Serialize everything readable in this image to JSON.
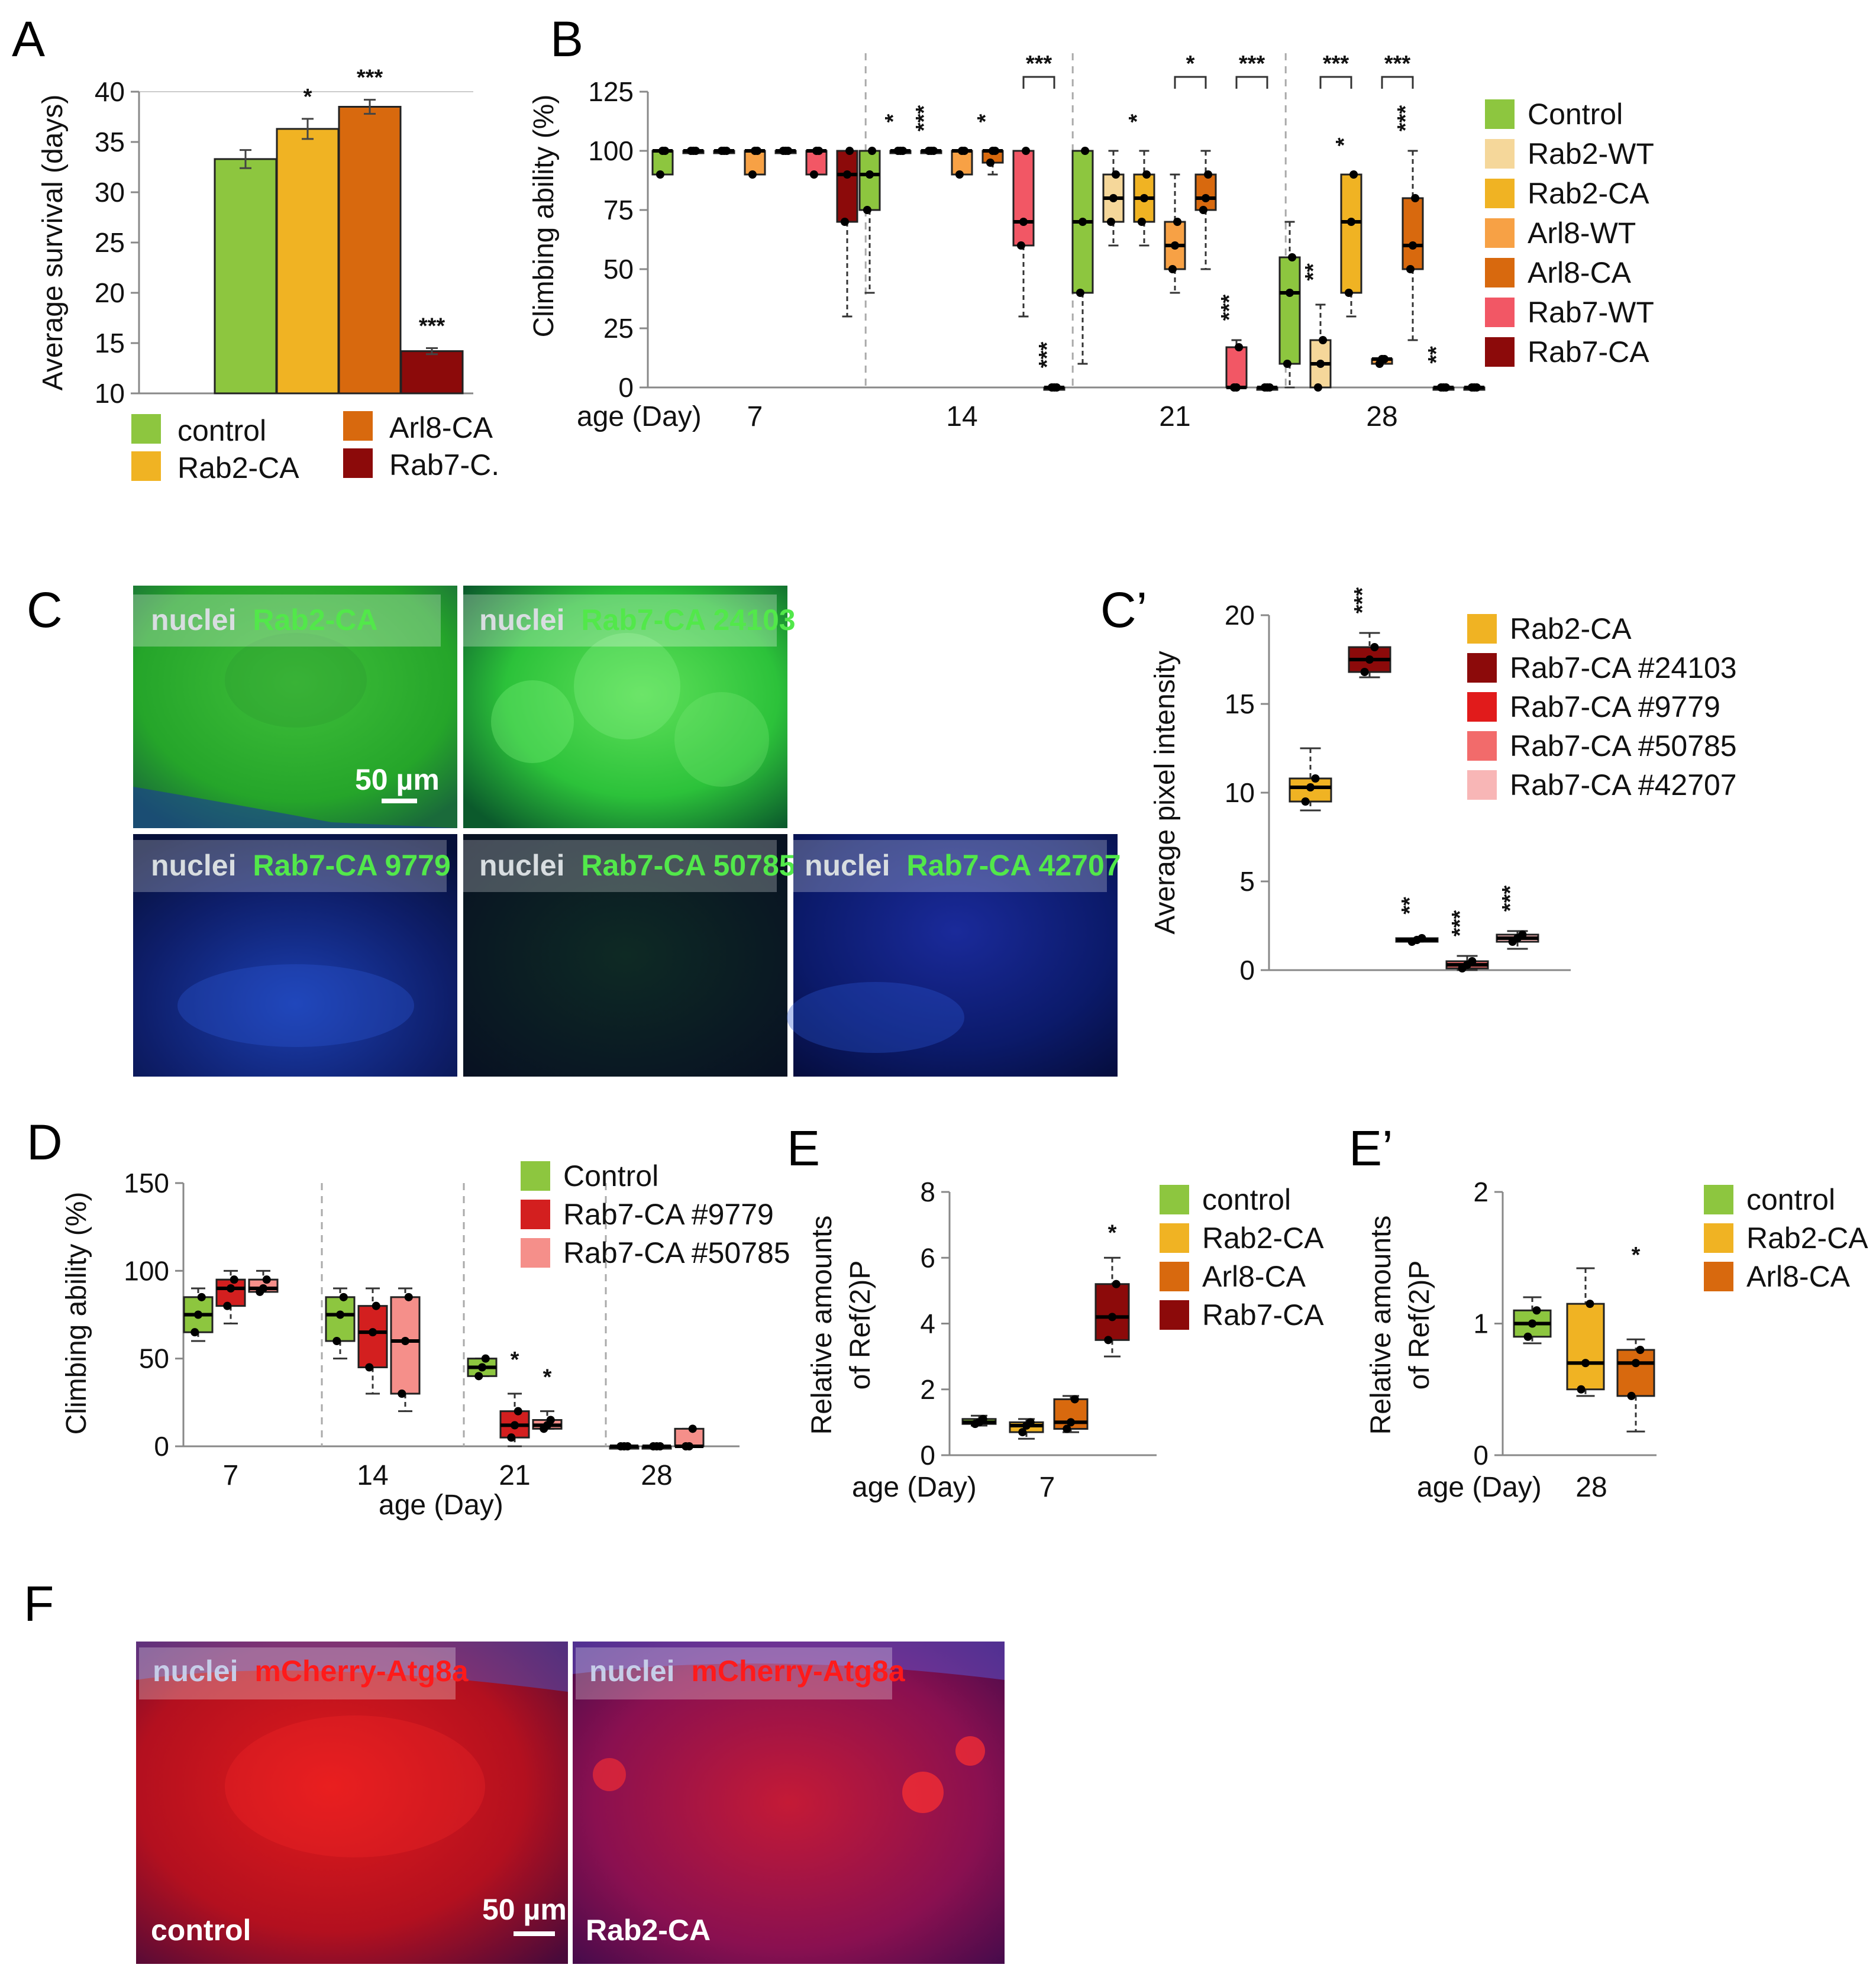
{
  "colors": {
    "control": "#8dc63f",
    "rab2_wt": "#f5d79a",
    "rab2_ca": "#f0b323",
    "arl8_wt": "#f7a145",
    "arl8_ca": "#d8690e",
    "rab7_wt": "#f25765",
    "rab7_ca": "#8c0a0a",
    "rab7_24103": "#8c0a0a",
    "rab7_9779": "#e11b1b",
    "rab7_50785": "#f26b6b",
    "rab7_42707": "#f8b6b6",
    "d_9779": "#d31f1f",
    "d_50785": "#f58f8a"
  },
  "panel_labels": {
    "A": "A",
    "B": "B",
    "C": "C",
    "Cp": "C’",
    "D": "D",
    "E": "E",
    "Ep": "E’",
    "F": "F"
  },
  "chart_data": [
    {
      "id": "A",
      "type": "bar",
      "ylabel": "Average survival (days)",
      "ylim": [
        10,
        40
      ],
      "yticks": [
        10,
        15,
        20,
        25,
        30,
        35,
        40
      ],
      "categories": [
        "control",
        "Rab2-CA",
        "Arl8-CA",
        "Rab7-CA"
      ],
      "values": [
        33.3,
        36.3,
        38.5,
        14.2
      ],
      "errors": [
        0.9,
        1.0,
        0.7,
        0.3
      ],
      "significance": [
        "",
        "*",
        "***",
        "***"
      ],
      "legend": [
        "control",
        "Rab2-CA",
        "Arl8-CA",
        "Rab7-C."
      ]
    },
    {
      "id": "B",
      "type": "box",
      "ylabel": "Climbing ability (%)",
      "ylim": [
        0,
        125
      ],
      "yticks": [
        0,
        25,
        50,
        75,
        100,
        125
      ],
      "xlabel": "age (Day)",
      "groups": [
        "7",
        "14",
        "21",
        "28"
      ],
      "series": [
        "Control",
        "Rab2-WT",
        "Rab2-CA",
        "Arl8-WT",
        "Arl8-CA",
        "Rab7-WT",
        "Rab7-CA"
      ],
      "boxes": [
        [
          [
            90,
            90,
            100,
            100,
            100
          ],
          [
            100,
            100,
            100,
            100,
            100
          ],
          [
            100,
            100,
            100,
            100,
            100
          ],
          [
            90,
            90,
            100,
            100,
            100
          ],
          [
            100,
            100,
            100,
            100,
            100
          ],
          [
            90,
            90,
            100,
            100,
            100
          ],
          [
            30,
            70,
            90,
            100,
            100
          ]
        ],
        [
          [
            40,
            75,
            90,
            100,
            100
          ],
          [
            100,
            100,
            100,
            100,
            100
          ],
          [
            100,
            100,
            100,
            100,
            100
          ],
          [
            90,
            90,
            100,
            100,
            100
          ],
          [
            90,
            95,
            100,
            100,
            100
          ],
          [
            30,
            60,
            70,
            100,
            100
          ],
          [
            0,
            0,
            0,
            0,
            0
          ]
        ],
        [
          [
            10,
            40,
            70,
            100,
            100
          ],
          [
            60,
            70,
            80,
            90,
            100
          ],
          [
            60,
            70,
            80,
            90,
            100
          ],
          [
            40,
            50,
            60,
            70,
            90
          ],
          [
            50,
            75,
            80,
            90,
            100
          ],
          [
            0,
            0,
            0,
            17,
            20
          ],
          [
            0,
            0,
            0,
            0,
            0
          ]
        ],
        [
          [
            0,
            10,
            40,
            55,
            70
          ],
          [
            0,
            0,
            10,
            20,
            35
          ],
          [
            30,
            40,
            70,
            90,
            90
          ],
          [
            10,
            10,
            12,
            12,
            12
          ],
          [
            20,
            50,
            60,
            80,
            100
          ],
          [
            0,
            0,
            0,
            0,
            0
          ],
          [
            0,
            0,
            0,
            0,
            0
          ]
        ]
      ],
      "significance": [
        [
          "",
          "",
          "",
          "",
          "",
          "",
          ""
        ],
        [
          "",
          "*",
          "***",
          "",
          "*",
          "",
          "***"
        ],
        [
          "",
          "",
          "*",
          "",
          "",
          "***",
          ""
        ],
        [
          "",
          "**",
          "*",
          "",
          "***",
          "**",
          ""
        ]
      ],
      "brackets": [
        {
          "group": 1,
          "from": 5,
          "to": 6,
          "label": "***"
        },
        {
          "group": 2,
          "from": 3,
          "to": 4,
          "label": "*"
        },
        {
          "group": 2,
          "from": 5,
          "to": 6,
          "label": "***"
        },
        {
          "group": 3,
          "from": 1,
          "to": 2,
          "label": "***"
        },
        {
          "group": 3,
          "from": 3,
          "to": 4,
          "label": "***"
        }
      ]
    },
    {
      "id": "Cp",
      "type": "box",
      "ylabel": "Average pixel intensity",
      "ylim": [
        0,
        20
      ],
      "yticks": [
        0,
        5,
        10,
        15,
        20
      ],
      "series": [
        "Rab2-CA",
        "Rab7-CA #24103",
        "Rab7-CA #9779",
        "Rab7-CA #50785",
        "Rab7-CA #42707"
      ],
      "boxes": [
        [
          9,
          9.5,
          10.3,
          10.8,
          12.5
        ],
        [
          16.5,
          16.8,
          17.5,
          18.2,
          19
        ],
        [
          1.6,
          1.6,
          1.7,
          1.8,
          1.8
        ],
        [
          0,
          0.1,
          0.3,
          0.5,
          0.8
        ],
        [
          1.2,
          1.6,
          1.8,
          2.0,
          2.2
        ]
      ],
      "significance": [
        "",
        "***",
        "**",
        "***",
        "***"
      ]
    },
    {
      "id": "D",
      "type": "box",
      "ylabel": "Climbing ability (%)",
      "ylim": [
        0,
        150
      ],
      "yticks": [
        0,
        50,
        100,
        150
      ],
      "xlabel": "age (Day)",
      "groups": [
        "7",
        "14",
        "21",
        "28"
      ],
      "series": [
        "Control",
        "Rab7-CA #9779",
        "Rab7-CA #50785"
      ],
      "boxes": [
        [
          [
            60,
            65,
            75,
            85,
            90
          ],
          [
            70,
            80,
            90,
            95,
            100
          ],
          [
            88,
            88,
            90,
            95,
            100
          ]
        ],
        [
          [
            50,
            60,
            75,
            85,
            90
          ],
          [
            30,
            45,
            65,
            80,
            90
          ],
          [
            20,
            30,
            60,
            85,
            90
          ]
        ],
        [
          [
            40,
            40,
            45,
            50,
            50
          ],
          [
            0,
            5,
            12,
            20,
            30
          ],
          [
            10,
            10,
            12,
            15,
            20
          ]
        ],
        [
          [
            0,
            0,
            0,
            0,
            0
          ],
          [
            0,
            0,
            0,
            0,
            0
          ],
          [
            0,
            0,
            0,
            10,
            10
          ]
        ]
      ],
      "significance": [
        [
          "",
          "",
          ""
        ],
        [
          "",
          "",
          ""
        ],
        [
          "",
          "*",
          "*"
        ],
        [
          "",
          "",
          ""
        ]
      ]
    },
    {
      "id": "E",
      "type": "box",
      "ylabel": "Relative amounts of Ref(2)P",
      "ylim": [
        0,
        8
      ],
      "yticks": [
        0,
        2,
        4,
        6,
        8
      ],
      "xlabel": "age (Day)",
      "groups": [
        "7"
      ],
      "series": [
        "control",
        "Rab2-CA",
        "Arl8-CA",
        "Rab7-CA"
      ],
      "boxes": [
        [
          [
            0.9,
            0.95,
            1.0,
            1.1,
            1.2
          ],
          [
            0.5,
            0.7,
            0.9,
            1.0,
            1.1
          ],
          [
            0.7,
            0.8,
            1.0,
            1.7,
            1.8
          ],
          [
            3.0,
            3.5,
            4.2,
            5.2,
            6.0
          ]
        ]
      ],
      "significance": [
        "",
        "",
        "",
        "*"
      ]
    },
    {
      "id": "Ep",
      "type": "box",
      "ylabel": "Relative amounts of Ref(2)P",
      "ylim": [
        0,
        2
      ],
      "yticks": [
        0,
        1,
        2
      ],
      "xlabel": "age (Day)",
      "groups": [
        "28"
      ],
      "series": [
        "control",
        "Rab2-CA",
        "Arl8-CA"
      ],
      "boxes": [
        [
          [
            0.85,
            0.9,
            1.0,
            1.1,
            1.2
          ],
          [
            0.45,
            0.5,
            0.7,
            1.15,
            1.42
          ],
          [
            0.18,
            0.45,
            0.7,
            0.8,
            0.88
          ]
        ]
      ],
      "significance": [
        "",
        "",
        "*"
      ]
    }
  ],
  "micrographs_C": [
    {
      "nuclei": "nuclei",
      "label": "Rab2-CA"
    },
    {
      "nuclei": "nuclei",
      "label": "Rab7-CA 24103"
    },
    {
      "nuclei": "nuclei",
      "label": "Rab7-CA 9779"
    },
    {
      "nuclei": "nuclei",
      "label": "Rab7-CA 50785"
    },
    {
      "nuclei": "nuclei",
      "label": "Rab7-CA 42707"
    }
  ],
  "scale_bar": "50 µm",
  "micrographs_F": [
    {
      "nuclei": "nuclei",
      "label": "mCherry-Atg8a",
      "genotype": "control"
    },
    {
      "nuclei": "nuclei",
      "label": "mCherry-Atg8a",
      "genotype": "Rab2-CA"
    }
  ]
}
